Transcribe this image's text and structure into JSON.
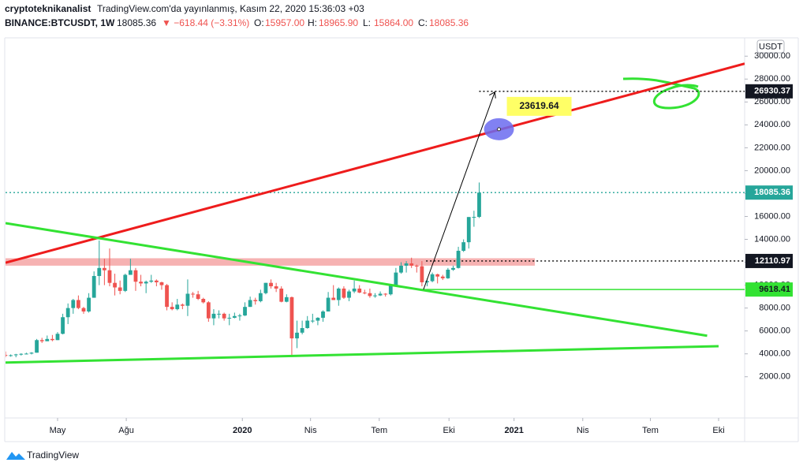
{
  "chart_data": {
    "type": "candlestick",
    "title": "cryptoteknikanalist",
    "subtitle": "TradingView.com'da yayınlanmış, Kasım 22, 2020 15:36:03 +03",
    "symbol": "BINANCE:BTCUSDT, 1W",
    "last": "18085.36",
    "change": "▼ −618.44 (−3.31%)",
    "ohlc": [
      {
        "label": "O:",
        "value": "15957.00"
      },
      {
        "label": "H:",
        "value": "18965.90"
      },
      {
        "label": "L:",
        "value": "15864.00"
      },
      {
        "label": "C:",
        "value": "18085.36"
      }
    ],
    "currency": "USDT",
    "brand": "TradingView",
    "up_color": "#26a69a",
    "down_color": "#ef5350",
    "candles": [
      [
        3900,
        4200,
        3700,
        3850
      ],
      [
        3850,
        3950,
        3750,
        3880
      ],
      [
        3880,
        4000,
        3700,
        3950
      ],
      [
        3950,
        4050,
        3850,
        4000
      ],
      [
        4000,
        4100,
        3950,
        4020
      ],
      [
        4020,
        4150,
        3950,
        4100
      ],
      [
        4100,
        5300,
        4100,
        5200
      ],
      [
        5200,
        5400,
        4950,
        5100
      ],
      [
        5100,
        5600,
        5150,
        5300
      ],
      [
        5300,
        5650,
        5100,
        5200
      ],
      [
        5200,
        5900,
        5200,
        5750
      ],
      [
        5750,
        7500,
        5700,
        7200
      ],
      [
        7200,
        8400,
        6600,
        8000
      ],
      [
        8000,
        8800,
        7500,
        8700
      ],
      [
        8700,
        9100,
        7900,
        8000
      ],
      [
        8000,
        8100,
        7500,
        7700
      ],
      [
        7700,
        9300,
        7600,
        8900
      ],
      [
        8900,
        11200,
        8900,
        10800
      ],
      [
        10800,
        13900,
        10000,
        11500
      ],
      [
        11500,
        12300,
        10000,
        11300
      ],
      [
        11300,
        13200,
        9900,
        10200
      ],
      [
        10200,
        11000,
        9100,
        9800
      ],
      [
        9800,
        10400,
        9200,
        9500
      ],
      [
        9500,
        11000,
        9400,
        10900
      ],
      [
        10900,
        12300,
        10900,
        11300
      ],
      [
        11300,
        11500,
        9500,
        10300
      ],
      [
        10300,
        10900,
        9900,
        10150
      ],
      [
        10150,
        10400,
        9300,
        10300
      ],
      [
        10300,
        10900,
        10200,
        10400
      ],
      [
        10400,
        10500,
        9900,
        10250
      ],
      [
        10250,
        10300,
        9600,
        10000
      ],
      [
        10000,
        10100,
        7800,
        8100
      ],
      [
        8100,
        8500,
        7800,
        7900
      ],
      [
        7900,
        8800,
        7800,
        8300
      ],
      [
        8300,
        8400,
        7900,
        8200
      ],
      [
        8200,
        10500,
        7300,
        9250
      ],
      [
        9250,
        9400,
        8900,
        9200
      ],
      [
        9200,
        9500,
        8700,
        8800
      ],
      [
        8800,
        8900,
        8400,
        8500
      ],
      [
        8500,
        8600,
        6800,
        7100
      ],
      [
        7100,
        7900,
        6500,
        7500
      ],
      [
        7500,
        7800,
        7100,
        7500
      ],
      [
        7500,
        7600,
        6900,
        7100
      ],
      [
        7100,
        7500,
        6500,
        7150
      ],
      [
        7150,
        7600,
        7100,
        7300
      ],
      [
        7300,
        7500,
        6900,
        7350
      ],
      [
        7350,
        8500,
        7300,
        8100
      ],
      [
        8100,
        9000,
        8100,
        8700
      ],
      [
        8700,
        8900,
        8300,
        8600
      ],
      [
        8600,
        9600,
        8500,
        9300
      ],
      [
        9300,
        10200,
        9200,
        10200
      ],
      [
        10200,
        10500,
        9700,
        9900
      ],
      [
        9900,
        10200,
        9400,
        9700
      ],
      [
        9700,
        9900,
        8500,
        8550
      ],
      [
        8550,
        9200,
        8500,
        8950
      ],
      [
        8950,
        9000,
        3800,
        5350
      ],
      [
        5350,
        6900,
        4500,
        5850
      ],
      [
        5850,
        6900,
        5700,
        6250
      ],
      [
        6250,
        7300,
        6200,
        6900
      ],
      [
        6900,
        7500,
        6700,
        6900
      ],
      [
        6900,
        7200,
        6500,
        7150
      ],
      [
        7150,
        7800,
        6800,
        7700
      ],
      [
        7700,
        9400,
        7700,
        8900
      ],
      [
        8900,
        10000,
        8700,
        8700
      ],
      [
        8700,
        9800,
        8200,
        9700
      ],
      [
        9700,
        9900,
        8800,
        8900
      ],
      [
        8900,
        9600,
        8600,
        9450
      ],
      [
        9450,
        10400,
        9300,
        9700
      ],
      [
        9700,
        10000,
        9300,
        9350
      ],
      [
        9350,
        9600,
        9200,
        9300
      ],
      [
        9300,
        9700,
        8900,
        9050
      ],
      [
        9050,
        9300,
        8900,
        9100
      ],
      [
        9100,
        9450,
        9050,
        9250
      ],
      [
        9250,
        9300,
        9000,
        9200
      ],
      [
        9200,
        10000,
        9100,
        9950
      ],
      [
        9950,
        11500,
        9900,
        11100
      ],
      [
        11100,
        12000,
        11000,
        11700
      ],
      [
        11700,
        12100,
        11100,
        11900
      ],
      [
        11900,
        12400,
        11500,
        11700
      ],
      [
        11700,
        11800,
        11100,
        11650
      ],
      [
        11650,
        12100,
        9900,
        10250
      ],
      [
        10250,
        10600,
        9900,
        10350
      ],
      [
        10350,
        11100,
        10250,
        10950
      ],
      [
        10950,
        11000,
        10150,
        10750
      ],
      [
        10750,
        10900,
        10450,
        10600
      ],
      [
        10600,
        11500,
        10550,
        11350
      ],
      [
        11350,
        11700,
        11250,
        11500
      ],
      [
        11500,
        13350,
        11450,
        13000
      ],
      [
        13000,
        14000,
        12900,
        13750
      ],
      [
        13750,
        15950,
        13200,
        15950
      ],
      [
        15950,
        16500,
        15100,
        15960
      ],
      [
        15957,
        18965.9,
        15864,
        18085.36
      ]
    ],
    "xlim": [
      0,
      142
    ],
    "ylim": [
      -1600,
      31600
    ],
    "xticks": [
      {
        "value": 10,
        "label": "May"
      },
      {
        "value": 23.2,
        "label": "Ağu"
      },
      {
        "value": 45.5,
        "label": "2020"
      },
      {
        "value": 58.6,
        "label": "Nis"
      },
      {
        "value": 71.8,
        "label": "Tem"
      },
      {
        "value": 85.2,
        "label": "Eki"
      },
      {
        "value": 97.7,
        "label": "2021"
      },
      {
        "value": 110.9,
        "label": "Nis"
      },
      {
        "value": 123.9,
        "label": "Tem"
      },
      {
        "value": 137,
        "label": "Eki"
      }
    ],
    "yticks": [
      {
        "value": 2000,
        "label": "2000.00"
      },
      {
        "value": 4000,
        "label": "4000.00"
      },
      {
        "value": 6000,
        "label": "6000.00"
      },
      {
        "value": 8000,
        "label": "8000.00"
      },
      {
        "value": 10000,
        "label": "10000.00"
      },
      {
        "value": 12000,
        "label": "12000.00"
      },
      {
        "value": 14000,
        "label": "14000.00"
      },
      {
        "value": 16000,
        "label": "16000.00"
      },
      {
        "value": 18000,
        "label": "18000.00"
      },
      {
        "value": 20000,
        "label": "20000.00"
      },
      {
        "value": 22000,
        "label": "22000.00"
      },
      {
        "value": 24000,
        "label": "24000.00"
      },
      {
        "value": 26000,
        "label": "26000.00"
      },
      {
        "value": 28000,
        "label": "28000.00"
      },
      {
        "value": 30000,
        "label": "30000.00"
      }
    ],
    "zone": {
      "x": [
        0,
        101.7
      ],
      "y": [
        11700,
        12350
      ],
      "color": "#f4a5a5"
    },
    "trendlines": [
      {
        "color": "#ee1c1c",
        "points": [
          [
            0,
            11960
          ],
          [
            142,
            29344
          ]
        ]
      },
      {
        "color": "#33e233",
        "points": [
          [
            0,
            15411
          ],
          [
            134.8,
            5581
          ]
        ]
      },
      {
        "color": "#33e233",
        "points": [
          [
            0,
            3237
          ],
          [
            137,
            4669
          ]
        ]
      }
    ],
    "hlines": [
      {
        "x": 80,
        "y": 9618.41,
        "color": "#33e233",
        "style": "solid"
      },
      {
        "x": 80.8,
        "y": 12110.97,
        "color": "#000000",
        "style": "dotted"
      },
      {
        "x": 91,
        "y": 26930.37,
        "color": "#000000",
        "style": "dotted"
      },
      {
        "x": 0,
        "y": 18085.36,
        "color": "#26a69a",
        "style": "dotted"
      }
    ],
    "arrow": {
      "from": [
        80.3,
        9618.41
      ],
      "to": [
        94,
        26870
      ]
    },
    "point": {
      "x": 94.8,
      "y": 23619.64,
      "label": 23619.64
    },
    "price_labels": [
      {
        "value": 26930.37,
        "color": "#131722"
      },
      {
        "value": 18085.36,
        "color": "#26a69a"
      },
      {
        "value": 12110.97,
        "color": "#131722"
      },
      {
        "value": 9618.41,
        "color": "#33e233"
      }
    ]
  }
}
